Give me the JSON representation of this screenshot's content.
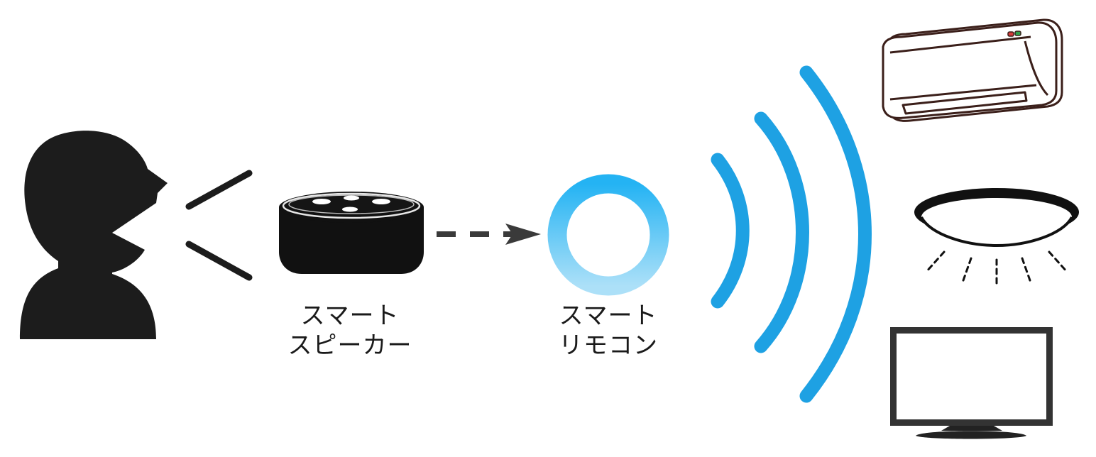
{
  "speaker": {
    "label_line1": "スマート",
    "label_line2": "スピーカー"
  },
  "remote": {
    "label_line1": "スマート",
    "label_line2": "リモコン"
  },
  "icons": [
    "person-speaking-icon",
    "smart-speaker-icon",
    "arrow-icon",
    "smart-remote-ring-icon",
    "signal-waves-icon",
    "air-conditioner-icon",
    "ceiling-light-icon",
    "television-icon"
  ],
  "colors": {
    "silhouette": "#1c1c1c",
    "wave": "#1ea1e3",
    "ring_top": "#2bb6f2",
    "ring_bottom": "#a8def7",
    "arrow": "#3a3a3a",
    "outline": "#3b1f1a"
  }
}
